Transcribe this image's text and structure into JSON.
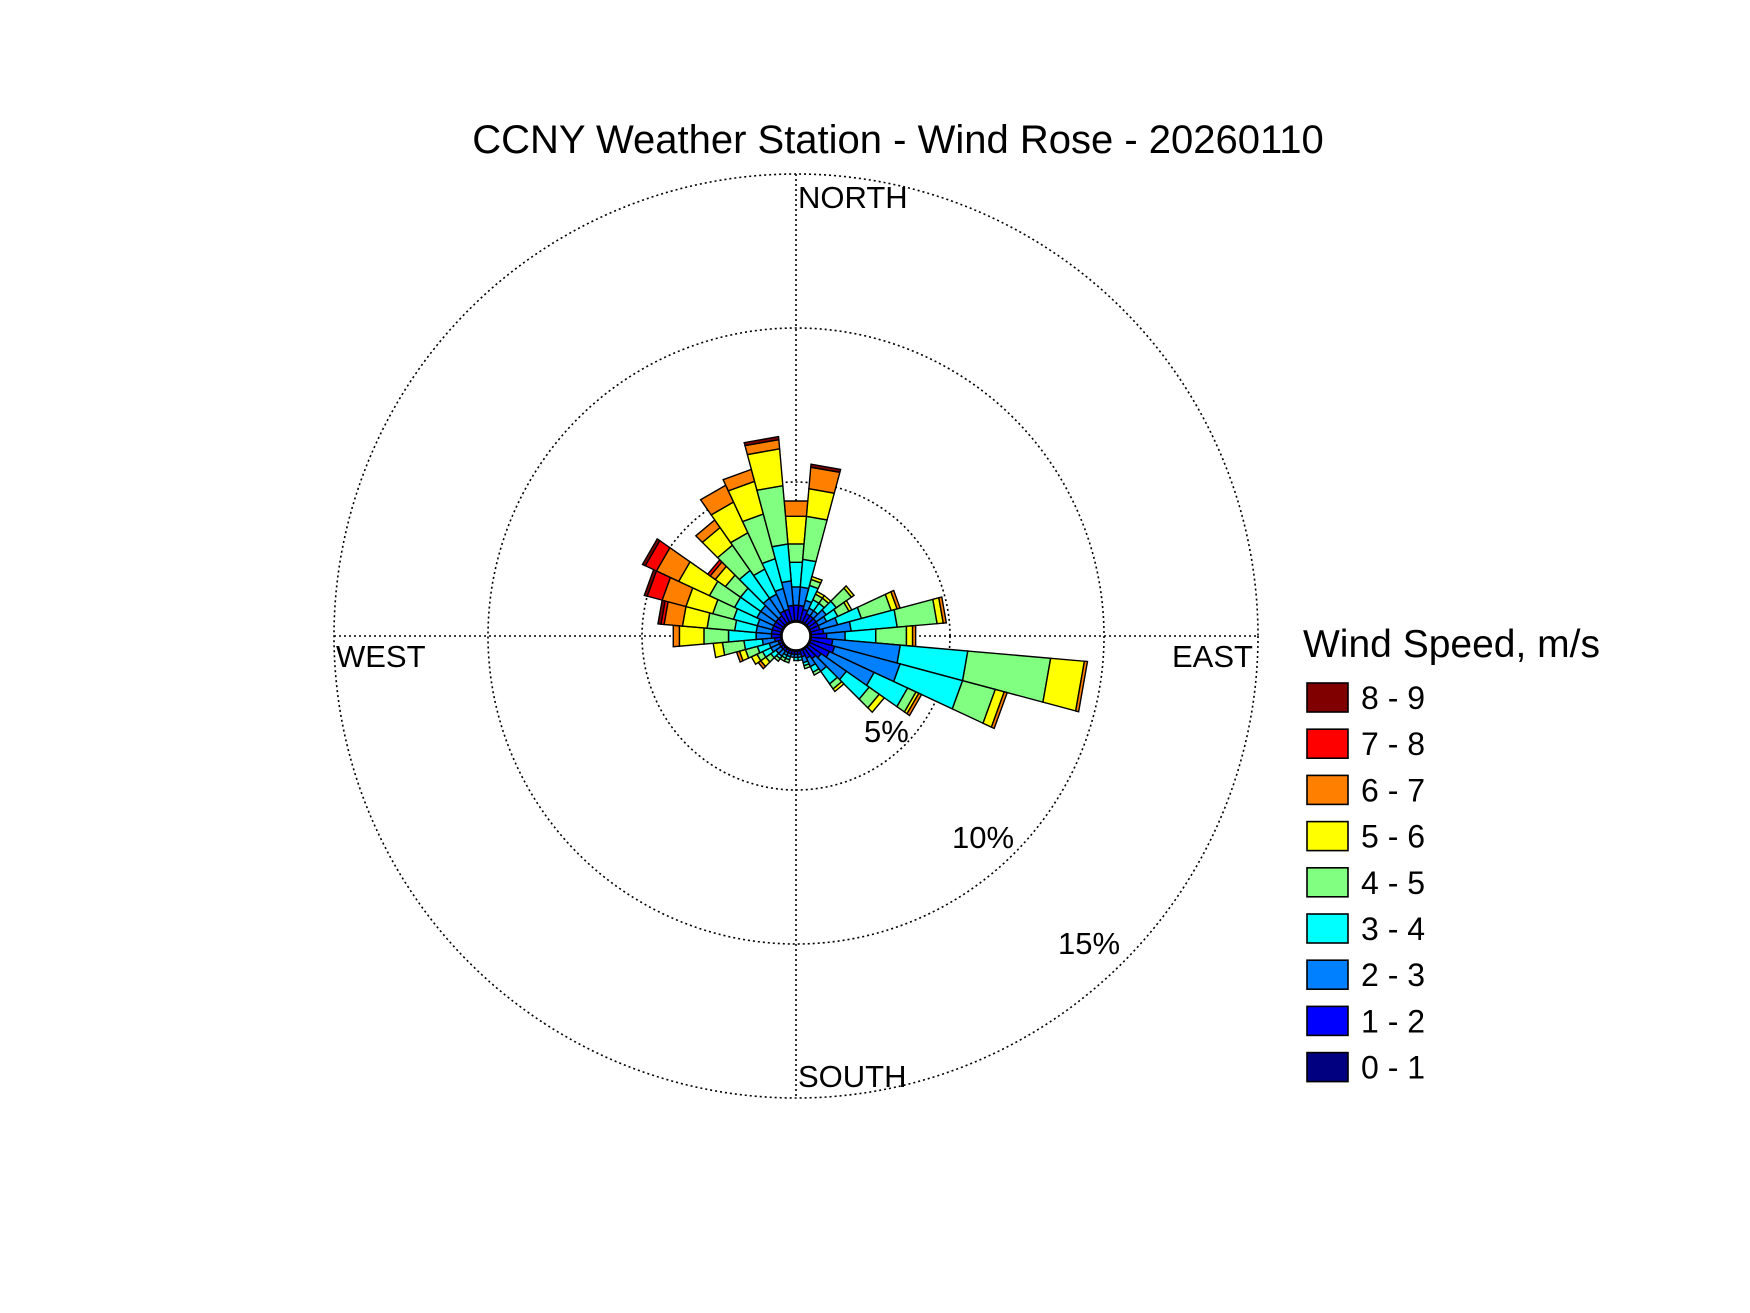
{
  "chart_data": {
    "type": "wind-rose",
    "title": "CCNY Weather Station - Wind Rose - 20260110",
    "directions": {
      "north": "NORTH",
      "south": "SOUTH",
      "east": "EAST",
      "west": "WEST"
    },
    "radial_axis": {
      "unit": "%",
      "max": 15,
      "rings": [
        5,
        10,
        15
      ],
      "ring_labels": [
        "5%",
        "10%",
        "15%"
      ]
    },
    "legend": {
      "title": "Wind Speed, m/s",
      "bins": [
        {
          "label": "8 - 9",
          "color": "#800000"
        },
        {
          "label": "7 - 8",
          "color": "#ff0000"
        },
        {
          "label": "6 - 7",
          "color": "#ff8000"
        },
        {
          "label": "5 - 6",
          "color": "#ffff00"
        },
        {
          "label": "4 - 5",
          "color": "#80ff80"
        },
        {
          "label": "3 - 4",
          "color": "#00ffff"
        },
        {
          "label": "2 - 3",
          "color": "#0080ff"
        },
        {
          "label": "1 - 2",
          "color": "#0000ff"
        },
        {
          "label": "0 - 1",
          "color": "#000080"
        }
      ]
    },
    "bin_width_deg": 10,
    "bins_order": [
      "0 - 1",
      "1 - 2",
      "2 - 3",
      "3 - 4",
      "4 - 5",
      "5 - 6",
      "6 - 7",
      "7 - 8",
      "8 - 9"
    ],
    "sectors": [
      {
        "dir_deg": 0,
        "cumulative_pct": [
          0.5,
          1.0,
          1.6,
          2.4,
          3.0,
          3.9,
          4.4,
          4.4,
          4.4
        ]
      },
      {
        "dir_deg": 10,
        "cumulative_pct": [
          0.5,
          1.0,
          1.6,
          2.5,
          3.9,
          4.8,
          5.5,
          5.5,
          5.6
        ]
      },
      {
        "dir_deg": 20,
        "cumulative_pct": [
          0.5,
          0.9,
          1.2,
          1.7,
          1.9,
          2.0,
          2.0,
          2.0,
          2.0
        ]
      },
      {
        "dir_deg": 30,
        "cumulative_pct": [
          0.5,
          0.8,
          1.0,
          1.3,
          1.5,
          1.6,
          1.6,
          1.6,
          1.6
        ]
      },
      {
        "dir_deg": 40,
        "cumulative_pct": [
          0.5,
          0.8,
          1.0,
          1.3,
          1.5,
          1.6,
          1.6,
          1.6,
          1.6
        ]
      },
      {
        "dir_deg": 50,
        "cumulative_pct": [
          0.5,
          0.8,
          1.2,
          1.6,
          2.2,
          2.3,
          2.3,
          2.3,
          2.3
        ]
      },
      {
        "dir_deg": 60,
        "cumulative_pct": [
          0.5,
          0.8,
          1.1,
          1.5,
          1.9,
          2.0,
          2.0,
          2.0,
          2.0
        ]
      },
      {
        "dir_deg": 70,
        "cumulative_pct": [
          0.5,
          0.8,
          1.4,
          2.2,
          3.2,
          3.4,
          3.5,
          3.5,
          3.5
        ]
      },
      {
        "dir_deg": 80,
        "cumulative_pct": [
          0.5,
          0.9,
          1.8,
          3.3,
          4.6,
          4.8,
          4.9,
          4.9,
          4.9
        ]
      },
      {
        "dir_deg": 90,
        "cumulative_pct": [
          0.5,
          1.0,
          1.6,
          2.6,
          3.6,
          3.8,
          3.9,
          3.9,
          3.9
        ]
      },
      {
        "dir_deg": 100,
        "cumulative_pct": [
          0.5,
          1.2,
          3.4,
          5.6,
          8.3,
          9.4,
          9.5,
          9.5,
          9.5
        ]
      },
      {
        "dir_deg": 110,
        "cumulative_pct": [
          0.5,
          1.3,
          3.5,
          5.6,
          6.7,
          7.0,
          7.1,
          7.1,
          7.1
        ]
      },
      {
        "dir_deg": 120,
        "cumulative_pct": [
          0.5,
          1.2,
          2.8,
          4.0,
          4.3,
          4.4,
          4.5,
          4.5,
          4.5
        ]
      },
      {
        "dir_deg": 130,
        "cumulative_pct": [
          0.5,
          1.0,
          2.0,
          2.9,
          3.3,
          3.5,
          3.5,
          3.5,
          3.5
        ]
      },
      {
        "dir_deg": 140,
        "cumulative_pct": [
          0.5,
          0.9,
          1.4,
          1.9,
          2.1,
          2.2,
          2.2,
          2.2,
          2.2
        ]
      },
      {
        "dir_deg": 150,
        "cumulative_pct": [
          0.5,
          0.8,
          1.1,
          1.3,
          1.4,
          1.4,
          1.4,
          1.4,
          1.4
        ]
      },
      {
        "dir_deg": 160,
        "cumulative_pct": [
          0.5,
          0.7,
          0.9,
          1.0,
          1.1,
          1.1,
          1.1,
          1.1,
          1.1
        ]
      },
      {
        "dir_deg": 170,
        "cumulative_pct": [
          0.5,
          0.6,
          0.7,
          0.8,
          0.8,
          0.8,
          0.8,
          0.8,
          0.8
        ]
      },
      {
        "dir_deg": 180,
        "cumulative_pct": [
          0.5,
          0.6,
          0.7,
          0.8,
          0.8,
          0.8,
          0.8,
          0.8,
          0.8
        ]
      },
      {
        "dir_deg": 190,
        "cumulative_pct": [
          0.5,
          0.6,
          0.7,
          0.7,
          0.7,
          0.7,
          0.7,
          0.7,
          0.7
        ]
      },
      {
        "dir_deg": 200,
        "cumulative_pct": [
          0.5,
          0.6,
          0.7,
          0.8,
          0.9,
          0.9,
          0.9,
          0.9,
          0.9
        ]
      },
      {
        "dir_deg": 210,
        "cumulative_pct": [
          0.5,
          0.6,
          0.7,
          0.8,
          0.9,
          0.9,
          0.9,
          0.9,
          0.9
        ]
      },
      {
        "dir_deg": 220,
        "cumulative_pct": [
          0.5,
          0.6,
          0.8,
          0.9,
          1.0,
          1.0,
          1.0,
          1.0,
          1.0
        ]
      },
      {
        "dir_deg": 230,
        "cumulative_pct": [
          0.5,
          0.6,
          0.8,
          1.0,
          1.2,
          1.4,
          1.5,
          1.5,
          1.5
        ]
      },
      {
        "dir_deg": 240,
        "cumulative_pct": [
          0.5,
          0.6,
          0.9,
          1.2,
          1.4,
          1.6,
          1.6,
          1.6,
          1.6
        ]
      },
      {
        "dir_deg": 250,
        "cumulative_pct": [
          0.5,
          0.6,
          0.9,
          1.3,
          1.7,
          1.9,
          2.0,
          2.0,
          2.0
        ]
      },
      {
        "dir_deg": 260,
        "cumulative_pct": [
          0.5,
          0.7,
          1.1,
          1.7,
          2.4,
          2.7,
          2.7,
          2.7,
          2.7
        ]
      },
      {
        "dir_deg": 270,
        "cumulative_pct": [
          0.5,
          0.8,
          1.3,
          2.2,
          3.0,
          3.8,
          4.0,
          4.0,
          4.0
        ]
      },
      {
        "dir_deg": 280,
        "cumulative_pct": [
          0.5,
          0.8,
          1.3,
          2.0,
          2.9,
          3.7,
          4.3,
          4.4,
          4.5
        ]
      },
      {
        "dir_deg": 290,
        "cumulative_pct": [
          0.5,
          0.8,
          1.3,
          2.1,
          2.8,
          3.7,
          4.5,
          5.0,
          5.1
        ]
      },
      {
        "dir_deg": 300,
        "cumulative_pct": [
          0.5,
          0.8,
          1.4,
          2.2,
          3.1,
          4.2,
          5.0,
          5.4,
          5.5
        ]
      },
      {
        "dir_deg": 310,
        "cumulative_pct": [
          0.5,
          0.8,
          1.4,
          2.2,
          2.8,
          3.2,
          3.4,
          3.5,
          3.5
        ]
      },
      {
        "dir_deg": 320,
        "cumulative_pct": [
          0.5,
          0.8,
          1.5,
          2.6,
          3.6,
          4.3,
          4.6,
          4.6,
          4.6
        ]
      },
      {
        "dir_deg": 330,
        "cumulative_pct": [
          0.5,
          0.9,
          1.5,
          2.4,
          3.7,
          4.8,
          5.4,
          5.4,
          5.4
        ]
      },
      {
        "dir_deg": 340,
        "cumulative_pct": [
          0.5,
          0.9,
          1.6,
          2.6,
          4.1,
          5.2,
          5.6,
          5.6,
          5.6
        ]
      },
      {
        "dir_deg": 350,
        "cumulative_pct": [
          0.5,
          1.0,
          1.8,
          3.0,
          4.9,
          6.1,
          6.4,
          6.4,
          6.5
        ]
      }
    ]
  }
}
